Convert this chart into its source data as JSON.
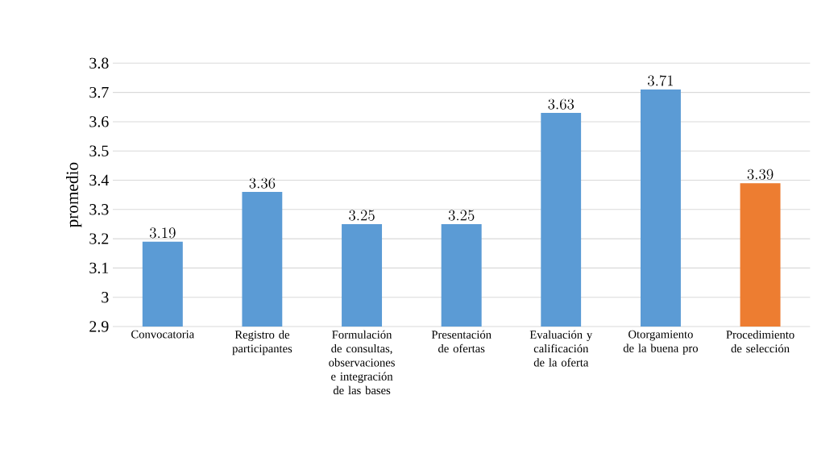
{
  "chart_data": {
    "type": "bar",
    "ylabel": "promedio",
    "categories": [
      "Convocatoria",
      "Registro de participantes",
      "Formulación de consultas, observaciones e integración de las bases",
      "Presentación de ofertas",
      "Evaluación y calificación de la oferta",
      "Otorgamiento de la buena pro",
      "Procedimiento de selección"
    ],
    "values": [
      3.19,
      3.36,
      3.25,
      3.25,
      3.63,
      3.71,
      3.39
    ],
    "colors": [
      "#5b9bd5",
      "#5b9bd5",
      "#5b9bd5",
      "#5b9bd5",
      "#5b9bd5",
      "#5b9bd5",
      "#ed7d31"
    ],
    "ylim": [
      2.9,
      3.8
    ],
    "yticks": [
      2.9,
      3,
      3.1,
      3.2,
      3.3,
      3.4,
      3.5,
      3.6,
      3.7,
      3.8
    ],
    "grid": "y",
    "data_labels": true
  }
}
